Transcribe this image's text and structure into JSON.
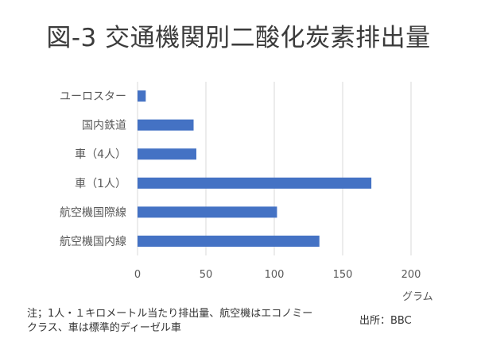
{
  "title": "図-3 交通機関別二酸化炭素排出量",
  "unit_label": "グラム",
  "note": "注；1人・１キロメートル当たり排出量、航空機はエコノミークラス、車は標準的ディーゼル車",
  "source": "出所：BBC",
  "colors": {
    "bar": "#4472c4",
    "grid": "#d9d9d9",
    "text": "#595959"
  },
  "chart_data": {
    "type": "bar",
    "orientation": "horizontal",
    "categories": [
      "ユーロスター",
      "国内鉄道",
      "車（4人）",
      "車（1人）",
      "航空機国際線",
      "航空機国内線"
    ],
    "values": [
      6,
      41,
      43,
      171,
      102,
      133
    ],
    "xlim": [
      0,
      200
    ],
    "xticks": [
      0,
      50,
      100,
      150,
      200
    ],
    "xlabel": "グラム",
    "grid": true,
    "legend": "none"
  }
}
